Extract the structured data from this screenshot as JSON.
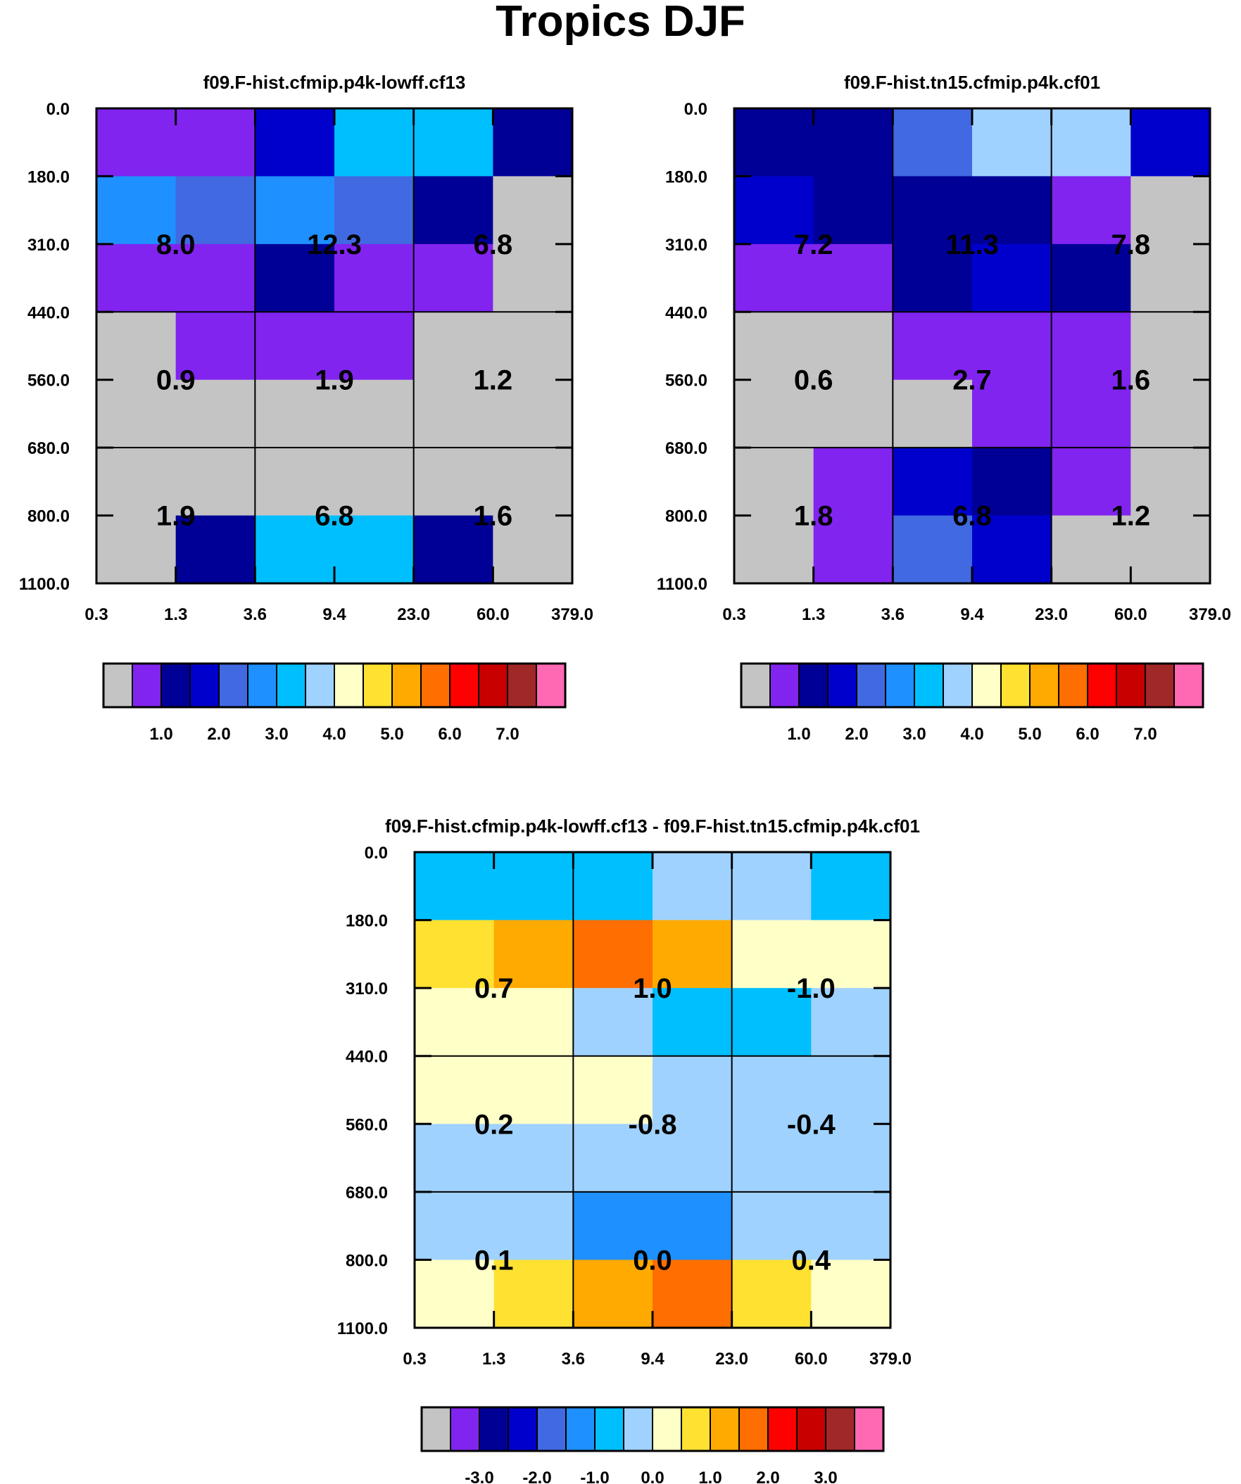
{
  "title": "Tropics DJF",
  "colors": {
    "palette": [
      "#c4c4c4",
      "#8124f0",
      "#000096",
      "#0000cd",
      "#4169e1",
      "#1e90ff",
      "#00bfff",
      "#a0d2ff",
      "#ffffc8",
      "#ffe132",
      "#ffaa00",
      "#ff6e00",
      "#ff0000",
      "#c80000",
      "#a02828",
      "#ff69b4"
    ]
  },
  "chart_data": [
    {
      "id": "cf13",
      "type": "heatmap",
      "title": "f09.F-hist.cfmip.p4k-lowff.cf13",
      "ylabel": "",
      "xlabel": "",
      "x_ticks": [
        "0.3",
        "1.3",
        "3.6",
        "9.4",
        "23.0",
        "60.0",
        "379.0"
      ],
      "y_ticks": [
        "0.0",
        "180.0",
        "310.0",
        "440.0",
        "560.0",
        "680.0",
        "800.0",
        "1100.0"
      ],
      "cells_color_index": [
        [
          1,
          1,
          3,
          6,
          6,
          2
        ],
        [
          5,
          4,
          5,
          4,
          2,
          0
        ],
        [
          1,
          1,
          2,
          1,
          1,
          0
        ],
        [
          0,
          1,
          1,
          1,
          0,
          0
        ],
        [
          0,
          0,
          0,
          0,
          0,
          0
        ],
        [
          0,
          0,
          0,
          0,
          0,
          0
        ],
        [
          0,
          2,
          6,
          6,
          2,
          0
        ]
      ],
      "block_labels": [
        [
          "8.0",
          "12.3",
          "6.8"
        ],
        [
          "0.9",
          "1.9",
          "1.2"
        ],
        [
          "1.9",
          "6.8",
          "1.6"
        ]
      ],
      "colorbar_labels": [
        "1.0",
        "2.0",
        "3.0",
        "4.0",
        "5.0",
        "6.0",
        "7.0"
      ]
    },
    {
      "id": "cf01",
      "type": "heatmap",
      "title": "f09.F-hist.tn15.cfmip.p4k.cf01",
      "ylabel": "",
      "xlabel": "",
      "x_ticks": [
        "0.3",
        "1.3",
        "3.6",
        "9.4",
        "23.0",
        "60.0",
        "379.0"
      ],
      "y_ticks": [
        "0.0",
        "180.0",
        "310.0",
        "440.0",
        "560.0",
        "680.0",
        "800.0",
        "1100.0"
      ],
      "cells_color_index": [
        [
          2,
          2,
          4,
          7,
          7,
          3
        ],
        [
          3,
          2,
          2,
          2,
          1,
          0
        ],
        [
          1,
          1,
          2,
          3,
          2,
          0
        ],
        [
          0,
          0,
          1,
          1,
          1,
          0
        ],
        [
          0,
          0,
          0,
          1,
          1,
          0
        ],
        [
          0,
          1,
          3,
          2,
          1,
          0
        ],
        [
          0,
          1,
          4,
          3,
          0,
          0
        ]
      ],
      "block_labels": [
        [
          "7.2",
          "11.3",
          "7.8"
        ],
        [
          "0.6",
          "2.7",
          "1.6"
        ],
        [
          "1.8",
          "6.8",
          "1.2"
        ]
      ],
      "colorbar_labels": [
        "1.0",
        "2.0",
        "3.0",
        "4.0",
        "5.0",
        "6.0",
        "7.0"
      ]
    },
    {
      "id": "diff",
      "type": "heatmap",
      "title": "f09.F-hist.cfmip.p4k-lowff.cf13 - f09.F-hist.tn15.cfmip.p4k.cf01",
      "ylabel": "",
      "xlabel": "",
      "x_ticks": [
        "0.3",
        "1.3",
        "3.6",
        "9.4",
        "23.0",
        "60.0",
        "379.0"
      ],
      "y_ticks": [
        "0.0",
        "180.0",
        "310.0",
        "440.0",
        "560.0",
        "680.0",
        "800.0",
        "1100.0"
      ],
      "cells_color_index": [
        [
          6,
          6,
          6,
          7,
          7,
          6
        ],
        [
          9,
          10,
          11,
          10,
          8,
          8
        ],
        [
          8,
          8,
          7,
          6,
          6,
          7
        ],
        [
          8,
          8,
          8,
          7,
          7,
          7
        ],
        [
          7,
          7,
          7,
          7,
          7,
          7
        ],
        [
          7,
          7,
          5,
          5,
          7,
          7
        ],
        [
          8,
          9,
          10,
          11,
          9,
          8
        ]
      ],
      "block_labels": [
        [
          "0.7",
          "1.0",
          "-1.0"
        ],
        [
          "0.2",
          "-0.8",
          "-0.4"
        ],
        [
          "0.1",
          "0.0",
          "0.4"
        ]
      ],
      "colorbar_labels": [
        "-3.0",
        "-2.0",
        "-1.0",
        "0.0",
        "1.0",
        "2.0",
        "3.0"
      ]
    }
  ]
}
